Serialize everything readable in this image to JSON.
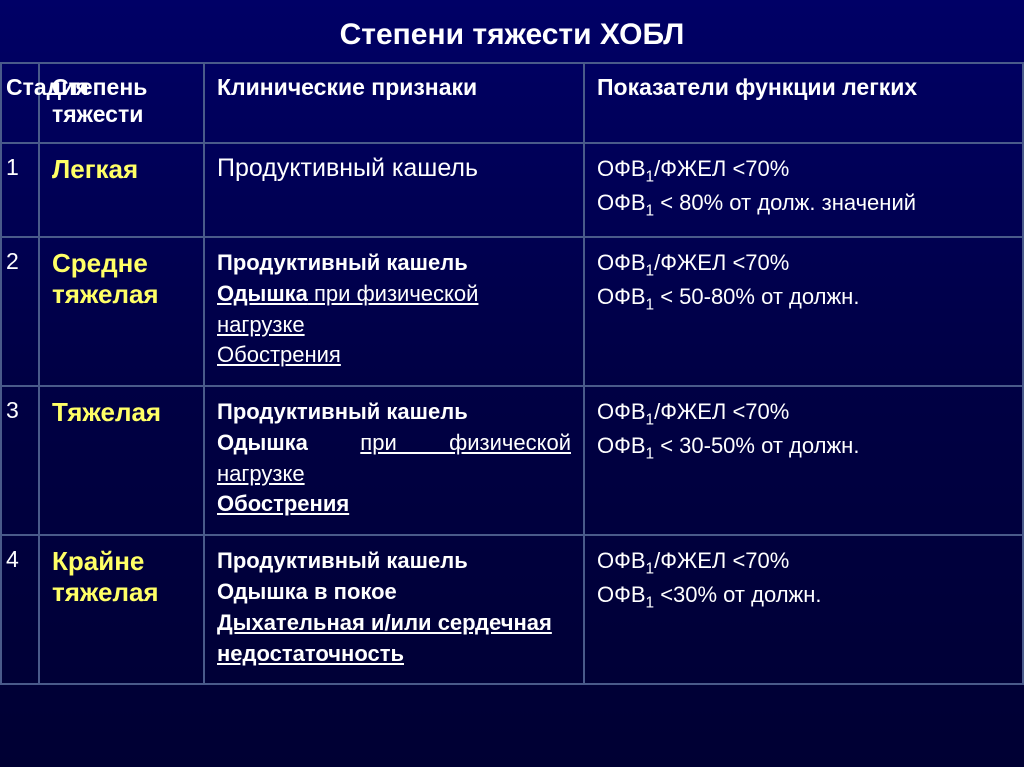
{
  "title": "Степени тяжести ХОБЛ",
  "headers": {
    "stage": "Стадия",
    "severity": "Степень тяжести",
    "clinical": "Клинические",
    "clinical_b": "признаки",
    "function": "Показатели функции легких"
  },
  "rows": [
    {
      "num": "1",
      "sev": "Легкая",
      "clin1": "Продуктивный кашель",
      "clin2": "",
      "clin3": "",
      "clin4": "",
      "f1a": "ОФВ",
      "f1b": "/ФЖЕЛ <70%",
      "f2a": "ОФВ",
      "f2b": " < 80% от долж. значений"
    },
    {
      "num": "2",
      "sev": "Средне тяжелая",
      "clin1": "Продуктивный кашель",
      "clin2": "Одышка",
      "clin2b": " при физической нагрузке",
      "clin3": "Обострения",
      "f1a": "ОФВ",
      "f1b": "/ФЖЕЛ <70%",
      "f2a": "ОФВ",
      "f2b": " < 50-80% от должн."
    },
    {
      "num": "3",
      "sev": "Тяжелая",
      "clin1": "Продуктивный кашель",
      "clin2": "Одышка",
      "clin2b": " при физической нагрузке",
      "clin3": "Обострения",
      "f1a": "ОФВ",
      "f1b": "/ФЖЕЛ <70%",
      "f2a": "ОФВ",
      "f2b": " < 30-50% от должн."
    },
    {
      "num": "4",
      "sev": "Крайне тяжелая",
      "clin1": "Продуктивный кашель",
      "clin2": "Одышка в покое",
      "clin3": "Дыхательная и/или сердечная недостаточность",
      "f1a": "ОФВ",
      "f1b": "/ФЖЕЛ <70%",
      "f2a": "ОФВ",
      "f2b": " <30% от должн."
    }
  ]
}
